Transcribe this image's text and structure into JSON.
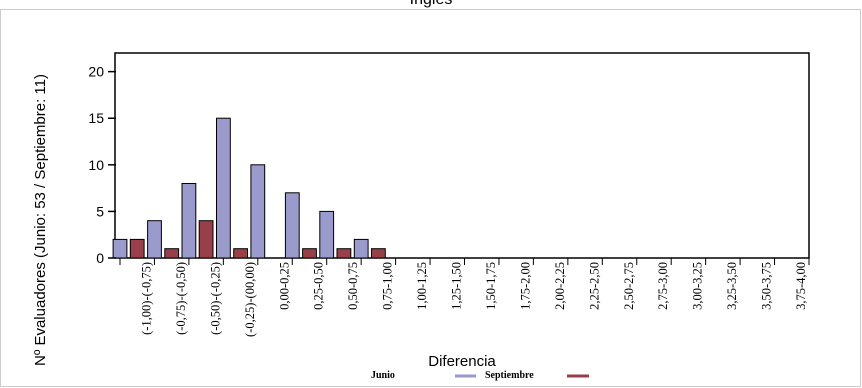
{
  "chart_data": {
    "type": "bar",
    "title": "Inglés",
    "xlabel": "Diferencia",
    "ylabel": "Nº Evaluadores (Junio: 53 / Septiembre: 11)",
    "ylim": [
      0,
      22
    ],
    "yticks": [
      0,
      5,
      10,
      15,
      20
    ],
    "grid": false,
    "legend_position": "bottom",
    "categories": [
      "(-1,00)-(-0,75)",
      "(-0,75)-(-0,50)",
      "(-0,50)-(-0,25)",
      "(-0,25)-(00,00)",
      "0,00-0,25",
      "0,25-0,50",
      "0,50-0,75",
      "0,75-1,00",
      "1,00-1,25",
      "1,25-1,50",
      "1,50-1,75",
      "1,75-2,00",
      "2,00-2,25",
      "2,25-2,50",
      "2,50-2,75",
      "2,75-3,00",
      "3,00-3,25",
      "3,25-3,50",
      "3,50-3,75",
      "3,75-4,00"
    ],
    "series": [
      {
        "name": "Junio",
        "color": "#9a9acc",
        "values": [
          2,
          4,
          8,
          15,
          10,
          7,
          5,
          2,
          0,
          0,
          0,
          0,
          0,
          0,
          0,
          0,
          0,
          0,
          0,
          0
        ],
        "offsets": [
          -1.0,
          -0.75,
          -0.5,
          -0.25,
          0.0,
          0.25,
          0.5,
          0.75
        ]
      },
      {
        "name": "Septiembre",
        "color": "#993f4a",
        "values": [
          2,
          1,
          4,
          1,
          0,
          1,
          1,
          1,
          0,
          0,
          0,
          0,
          0,
          0,
          0,
          0,
          0,
          0,
          0,
          0
        ],
        "offsets": [
          -0.875,
          -0.625,
          -0.375,
          -0.125,
          0.125,
          0.375,
          0.625,
          0.875
        ]
      }
    ],
    "bar_range": [
      -1.0,
      1.0
    ],
    "axis_range": [
      -1.0,
      4.0
    ]
  }
}
